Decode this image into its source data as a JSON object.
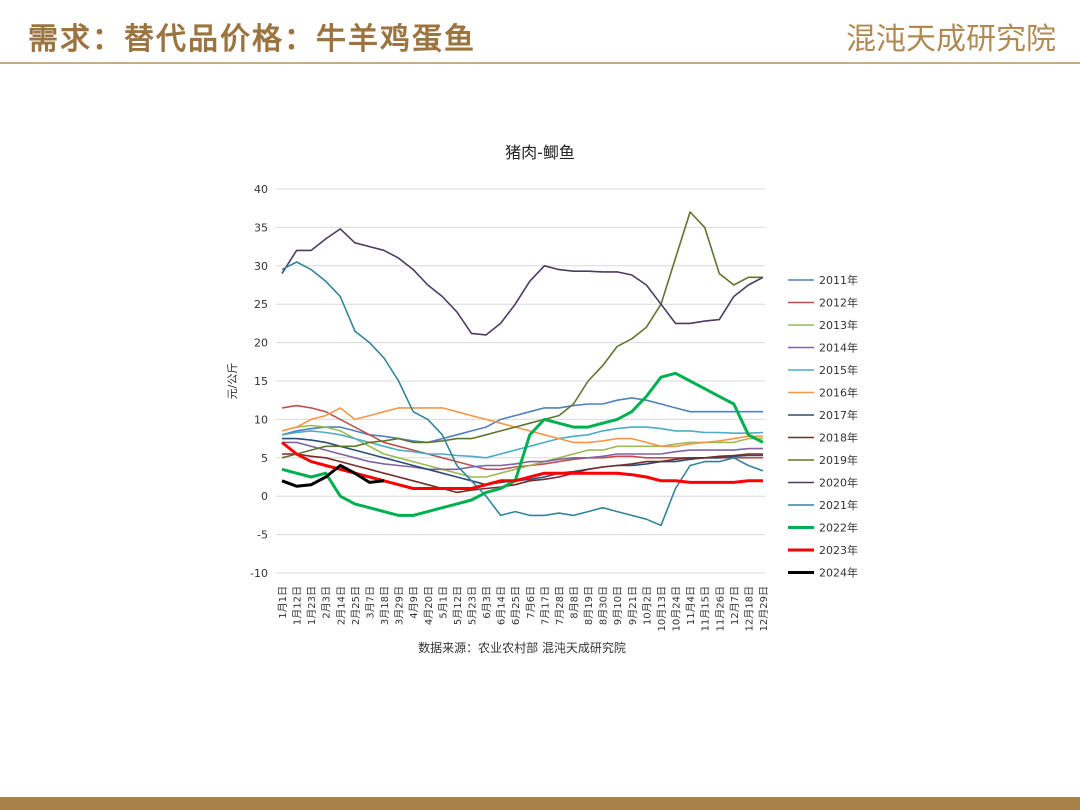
{
  "header": {
    "title": "需求：替代品价格：牛羊鸡蛋鱼",
    "logo": "混沌天成研究院"
  },
  "chart_data": {
    "type": "line",
    "title": "猪肉-鲫鱼",
    "y_label": "元/公斤",
    "source": "数据来源：农业农村部 混沌天成研究院",
    "categories": [
      "1月1日",
      "1月12日",
      "1月23日",
      "2月3日",
      "2月14日",
      "2月25日",
      "3月7日",
      "3月18日",
      "3月29日",
      "4月9日",
      "4月20日",
      "5月1日",
      "5月12日",
      "5月23日",
      "6月3日",
      "6月14日",
      "6月25日",
      "7月6日",
      "7月17日",
      "7月28日",
      "8月8日",
      "8月19日",
      "8月30日",
      "9月10日",
      "9月21日",
      "10月2日",
      "10月13日",
      "10月24日",
      "11月4日",
      "11月15日",
      "11月26日",
      "12月7日",
      "12月18日",
      "12月29日"
    ],
    "ylim": [
      -10,
      40
    ],
    "yticks": [
      -10,
      -5,
      0,
      5,
      10,
      15,
      20,
      25,
      30,
      35,
      40
    ],
    "grid": true,
    "legend": "right",
    "series": [
      {
        "name": "2011年",
        "color": "#4f81bd",
        "width": 1.6,
        "values": [
          8,
          8.5,
          8.8,
          9,
          9,
          8.5,
          8,
          7.8,
          7.5,
          7.2,
          7,
          7.5,
          8,
          8.5,
          9,
          10,
          10.5,
          11,
          11.5,
          11.5,
          11.8,
          12,
          12,
          12.5,
          12.8,
          12.5,
          12,
          11.5,
          11,
          11,
          11,
          11,
          11,
          11
        ]
      },
      {
        "name": "2012年",
        "color": "#c0504d",
        "width": 1.6,
        "values": [
          11.5,
          11.8,
          11.5,
          11,
          10,
          9,
          8,
          7,
          6.5,
          6,
          5.5,
          5,
          4.5,
          4,
          3.5,
          3.5,
          3.8,
          4,
          4.2,
          4.5,
          4.8,
          5,
          5,
          5.2,
          5.2,
          5,
          5,
          5,
          5,
          5,
          5,
          5,
          5,
          5
        ]
      },
      {
        "name": "2013年",
        "color": "#9bbb59",
        "width": 1.6,
        "values": [
          8.5,
          9,
          9.2,
          9,
          8.5,
          7.5,
          6.5,
          5.5,
          5,
          4.5,
          4,
          3.5,
          3,
          2.5,
          2.5,
          3,
          3.5,
          4,
          4.5,
          5,
          5.5,
          6,
          6,
          6.5,
          6.5,
          6.5,
          6.5,
          6.8,
          7,
          7,
          7,
          7,
          7.5,
          7.5
        ]
      },
      {
        "name": "2014年",
        "color": "#8064a2",
        "width": 1.6,
        "values": [
          7,
          7,
          6.5,
          6,
          5.5,
          5,
          4.5,
          4.2,
          4,
          3.8,
          3.5,
          3.5,
          3.5,
          3.8,
          4,
          4,
          4.2,
          4.5,
          4.5,
          4.8,
          5,
          5,
          5.2,
          5.5,
          5.5,
          5.5,
          5.5,
          5.8,
          6,
          6,
          6,
          6,
          6.2,
          6.2
        ]
      },
      {
        "name": "2015年",
        "color": "#4bacc6",
        "width": 1.6,
        "values": [
          8,
          8.3,
          8.5,
          8.3,
          8,
          7.5,
          7,
          6.5,
          6,
          5.8,
          5.5,
          5.5,
          5.3,
          5.2,
          5,
          5.5,
          6,
          6.5,
          7,
          7.5,
          7.8,
          8,
          8.5,
          8.8,
          9,
          9,
          8.8,
          8.5,
          8.5,
          8.3,
          8.3,
          8.2,
          8.2,
          8.3
        ]
      },
      {
        "name": "2016年",
        "color": "#f79646",
        "width": 1.6,
        "values": [
          8.5,
          9,
          10,
          10.5,
          11.5,
          10,
          10.5,
          11,
          11.5,
          11.5,
          11.5,
          11.5,
          11,
          10.5,
          10,
          9.5,
          9,
          8.5,
          8,
          7.5,
          7,
          7,
          7.2,
          7.5,
          7.5,
          7,
          6.5,
          6.5,
          6.8,
          7,
          7.2,
          7.5,
          7.8,
          7.8
        ]
      },
      {
        "name": "2017年",
        "color": "#2c4d75",
        "width": 1.6,
        "values": [
          7.5,
          7.5,
          7.3,
          7,
          6.5,
          6,
          5.5,
          5,
          4.5,
          4,
          3.5,
          3,
          2.5,
          2,
          1.5,
          1.8,
          2,
          2.2,
          2.5,
          3,
          3.2,
          3.5,
          3.8,
          4,
          4,
          4.2,
          4.5,
          4.5,
          4.8,
          5,
          5,
          5.2,
          5.3,
          5.3
        ]
      },
      {
        "name": "2018年",
        "color": "#772c2a",
        "width": 1.6,
        "values": [
          5.5,
          5.5,
          5.2,
          5,
          4.5,
          4,
          3.5,
          3,
          2.5,
          2,
          1.5,
          1,
          0.5,
          0.8,
          1,
          1.2,
          1.5,
          2,
          2.2,
          2.5,
          3,
          3.5,
          3.8,
          4,
          4.2,
          4.5,
          4.5,
          4.8,
          5,
          5,
          5.2,
          5.3,
          5.5,
          5.5
        ]
      },
      {
        "name": "2019年",
        "color": "#5f7530",
        "width": 1.6,
        "values": [
          5,
          5.5,
          6,
          6.5,
          6.5,
          6.5,
          7,
          7.2,
          7.5,
          7,
          7,
          7.2,
          7.5,
          7.5,
          8,
          8.5,
          9,
          9.5,
          10,
          10.5,
          12,
          15,
          17,
          19.5,
          20.5,
          22,
          25,
          31,
          37,
          35,
          29,
          27.5,
          28.5,
          28.5
        ]
      },
      {
        "name": "2020年",
        "color": "#4d3b62",
        "width": 1.6,
        "values": [
          29,
          32,
          32,
          33.5,
          34.8,
          33,
          32.5,
          32,
          31,
          29.5,
          27.5,
          26,
          24,
          21.2,
          21,
          22.5,
          25,
          28,
          30,
          29.5,
          29.3,
          29.3,
          29.2,
          29.2,
          28.8,
          27.5,
          25,
          22.5,
          22.5,
          22.8,
          23,
          26,
          27.5,
          28.5
        ]
      },
      {
        "name": "2021年",
        "color": "#31859c",
        "width": 1.6,
        "values": [
          29.5,
          30.5,
          29.5,
          28,
          26,
          21.5,
          20,
          18,
          15,
          11,
          10,
          8,
          4,
          2,
          0,
          -2.5,
          -2,
          -2.5,
          -2.5,
          -2.2,
          -2.5,
          -2,
          -1.5,
          -2,
          -2.5,
          -3,
          -3.8,
          1,
          4,
          4.5,
          4.5,
          5,
          4,
          3.3
        ]
      },
      {
        "name": "2022年",
        "color": "#00b050",
        "width": 3,
        "values": [
          3.5,
          3,
          2.5,
          3,
          0,
          -1,
          -1.5,
          -2,
          -2.5,
          -2.5,
          -2,
          -1.5,
          -1,
          -0.5,
          0.5,
          1,
          2,
          8,
          10,
          9.5,
          9,
          9,
          9.5,
          10,
          11,
          13,
          15.5,
          16,
          15,
          14,
          13,
          12,
          8,
          7
        ]
      },
      {
        "name": "2023年",
        "color": "#ff0000",
        "width": 3,
        "values": [
          7,
          5.5,
          4.5,
          4,
          3.5,
          3,
          2.5,
          2,
          1.5,
          1,
          1,
          1,
          1,
          1,
          1.5,
          2,
          2,
          2.5,
          3,
          3,
          3,
          3,
          3,
          3,
          2.8,
          2.5,
          2,
          2,
          1.8,
          1.8,
          1.8,
          1.8,
          2,
          2
        ]
      },
      {
        "name": "2024年",
        "color": "#000000",
        "width": 3,
        "values": [
          2,
          1.3,
          1.5,
          2.5,
          4,
          3,
          1.8,
          2,
          null,
          null,
          null,
          null,
          null,
          null,
          null,
          null,
          null,
          null,
          null,
          null,
          null,
          null,
          null,
          null,
          null,
          null,
          null,
          null,
          null,
          null,
          null,
          null,
          null,
          null
        ]
      }
    ]
  }
}
